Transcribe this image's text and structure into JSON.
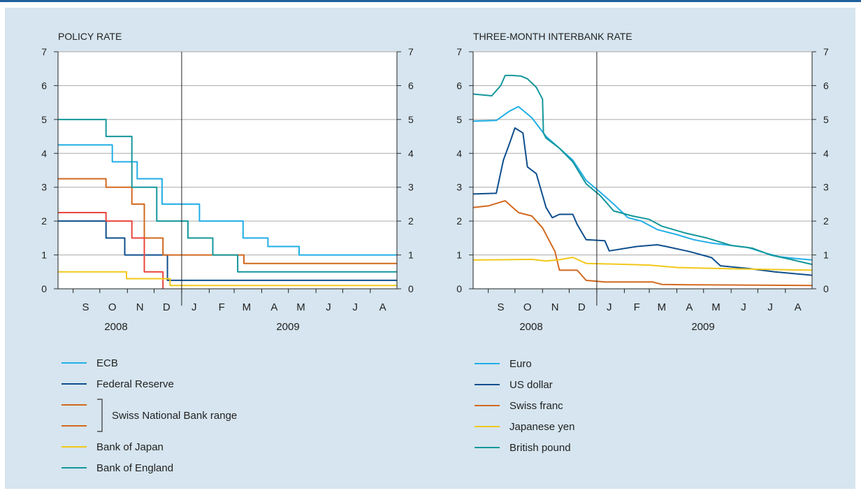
{
  "colors": {
    "ecb": "#22aee6",
    "fed": "#0f4f8e",
    "snb_upper": "#d2691f",
    "snb_lower": "#e8463c",
    "boj": "#f2c81a",
    "boe": "#14979b",
    "grid": "#aaaaaa",
    "background": "#d6e5ef"
  },
  "chart_data": [
    {
      "type": "line",
      "title": "POLICY RATE",
      "ylim": [
        0,
        7
      ],
      "y_ticks": [
        "0",
        "1",
        "2",
        "3",
        "4",
        "5",
        "6",
        "7"
      ],
      "x_tick_labels": [
        "S",
        "O",
        "N",
        "D",
        "J",
        "F",
        "M",
        "A",
        "M",
        "J",
        "J",
        "A"
      ],
      "year_labels": [
        "2008",
        "2009"
      ],
      "x_range": [
        "2008-08-15",
        "2009-08-31"
      ],
      "series": [
        {
          "name": "ECB",
          "color_key": "ecb",
          "step": true,
          "x": [
            "2008-08-15",
            "2008-10-15",
            "2008-11-12",
            "2008-12-10",
            "2009-01-21",
            "2009-03-11",
            "2009-04-08",
            "2009-05-13",
            "2009-08-31"
          ],
          "y": [
            4.25,
            3.75,
            3.25,
            2.5,
            2.0,
            1.5,
            1.25,
            1.0,
            1.0
          ]
        },
        {
          "name": "Federal Reserve",
          "color_key": "fed",
          "step": true,
          "x": [
            "2008-08-15",
            "2008-10-08",
            "2008-10-29",
            "2008-12-16",
            "2009-08-31"
          ],
          "y": [
            2.0,
            1.5,
            1.0,
            0.25,
            0.25
          ]
        },
        {
          "name": "Swiss National Bank range (upper)",
          "color_key": "snb_upper",
          "step": true,
          "x": [
            "2008-08-15",
            "2008-10-08",
            "2008-11-06",
            "2008-11-20",
            "2008-12-11",
            "2009-03-12",
            "2009-08-31"
          ],
          "y": [
            3.25,
            3.0,
            2.5,
            1.5,
            1.0,
            0.75,
            0.75
          ]
        },
        {
          "name": "Swiss National Bank range (lower)",
          "color_key": "snb_lower",
          "step": true,
          "x": [
            "2008-08-15",
            "2008-10-08",
            "2008-11-06",
            "2008-11-20",
            "2008-12-11"
          ],
          "y": [
            2.25,
            2.0,
            1.5,
            0.5,
            0.0
          ]
        },
        {
          "name": "Bank of Japan",
          "color_key": "boj",
          "step": true,
          "x": [
            "2008-08-15",
            "2008-10-31",
            "2008-12-19",
            "2009-08-31"
          ],
          "y": [
            0.5,
            0.3,
            0.1,
            0.1
          ]
        },
        {
          "name": "Bank of England",
          "color_key": "boe",
          "step": true,
          "x": [
            "2008-08-15",
            "2008-10-08",
            "2008-11-06",
            "2008-12-04",
            "2009-01-08",
            "2009-02-05",
            "2009-03-05",
            "2009-08-31"
          ],
          "y": [
            5.0,
            4.5,
            3.0,
            2.0,
            1.5,
            1.0,
            0.5,
            0.5
          ]
        }
      ]
    },
    {
      "type": "line",
      "title": "THREE-MONTH INTERBANK RATE",
      "ylim": [
        0,
        7
      ],
      "y_ticks": [
        "0",
        "1",
        "2",
        "3",
        "4",
        "5",
        "6",
        "7"
      ],
      "x_tick_labels": [
        "S",
        "O",
        "N",
        "D",
        "J",
        "F",
        "M",
        "A",
        "M",
        "J",
        "J",
        "A"
      ],
      "year_labels": [
        "2008",
        "2009"
      ],
      "x_range": [
        "2008-08-15",
        "2009-08-31"
      ],
      "series": [
        {
          "name": "Euro",
          "color_key": "ecb",
          "x": [
            "2008-08-15",
            "2008-09-10",
            "2008-09-25",
            "2008-10-05",
            "2008-10-20",
            "2008-11-05",
            "2008-11-20",
            "2008-12-05",
            "2008-12-20",
            "2009-01-05",
            "2009-01-20",
            "2009-02-05",
            "2009-02-20",
            "2009-03-10",
            "2009-04-01",
            "2009-04-20",
            "2009-05-10",
            "2009-06-01",
            "2009-06-20",
            "2009-07-10",
            "2009-07-25",
            "2009-08-10",
            "2009-08-31"
          ],
          "y": [
            4.95,
            4.97,
            5.25,
            5.38,
            5.05,
            4.5,
            4.15,
            3.8,
            3.2,
            2.85,
            2.5,
            2.1,
            2.0,
            1.75,
            1.6,
            1.45,
            1.35,
            1.28,
            1.22,
            1.05,
            0.95,
            0.9,
            0.85
          ]
        },
        {
          "name": "US dollar",
          "color_key": "fed",
          "x": [
            "2008-08-15",
            "2008-09-10",
            "2008-09-18",
            "2008-09-25",
            "2008-10-01",
            "2008-10-10",
            "2008-10-15",
            "2008-10-25",
            "2008-11-05",
            "2008-11-12",
            "2008-11-20",
            "2008-12-05",
            "2008-12-10",
            "2008-12-20",
            "2009-01-10",
            "2009-01-15",
            "2009-02-15",
            "2009-03-10",
            "2009-03-20",
            "2009-04-15",
            "2009-05-10",
            "2009-05-20",
            "2009-06-20",
            "2009-07-20",
            "2009-08-31"
          ],
          "y": [
            2.8,
            2.82,
            3.8,
            4.3,
            4.75,
            4.6,
            3.6,
            3.4,
            2.4,
            2.1,
            2.2,
            2.2,
            1.9,
            1.45,
            1.42,
            1.12,
            1.25,
            1.3,
            1.25,
            1.1,
            0.92,
            0.68,
            0.6,
            0.5,
            0.4
          ]
        },
        {
          "name": "Swiss franc",
          "color_key": "snb_upper",
          "x": [
            "2008-08-15",
            "2008-09-01",
            "2008-09-20",
            "2008-10-05",
            "2008-10-20",
            "2008-11-01",
            "2008-11-15",
            "2008-11-20",
            "2008-12-10",
            "2008-12-20",
            "2009-01-10",
            "2009-02-15",
            "2009-03-05",
            "2009-03-15",
            "2009-04-15",
            "2009-08-31"
          ],
          "y": [
            2.4,
            2.45,
            2.6,
            2.25,
            2.15,
            1.8,
            1.1,
            0.55,
            0.55,
            0.25,
            0.2,
            0.2,
            0.2,
            0.13,
            0.12,
            0.1
          ]
        },
        {
          "name": "Japanese yen",
          "color_key": "boj",
          "x": [
            "2008-08-15",
            "2008-09-20",
            "2008-10-20",
            "2008-11-05",
            "2008-11-20",
            "2008-12-05",
            "2008-12-20",
            "2009-01-20",
            "2009-03-01",
            "2009-04-01",
            "2009-05-15",
            "2009-08-31"
          ],
          "y": [
            0.85,
            0.86,
            0.87,
            0.82,
            0.86,
            0.93,
            0.75,
            0.73,
            0.7,
            0.63,
            0.6,
            0.55
          ]
        },
        {
          "name": "British pound",
          "color_key": "boe",
          "x": [
            "2008-08-15",
            "2008-09-05",
            "2008-09-15",
            "2008-09-20",
            "2008-09-28",
            "2008-10-08",
            "2008-10-15",
            "2008-10-25",
            "2008-11-01",
            "2008-11-02",
            "2008-11-05",
            "2008-11-20",
            "2008-12-05",
            "2008-12-20",
            "2009-01-05",
            "2009-01-20",
            "2009-02-10",
            "2009-03-01",
            "2009-03-15",
            "2009-04-10",
            "2009-05-05",
            "2009-06-01",
            "2009-06-25",
            "2009-07-15",
            "2009-08-05",
            "2009-08-31"
          ],
          "y": [
            5.75,
            5.7,
            6.0,
            6.3,
            6.3,
            6.28,
            6.2,
            5.95,
            5.6,
            4.6,
            4.45,
            4.15,
            3.75,
            3.1,
            2.75,
            2.3,
            2.15,
            2.05,
            1.85,
            1.65,
            1.5,
            1.28,
            1.2,
            1.0,
            0.88,
            0.72
          ]
        }
      ]
    }
  ],
  "legend_left": {
    "ecb": "ECB",
    "fed": "Federal Reserve",
    "snb": "Swiss National Bank range",
    "boj": "Bank of Japan",
    "boe": "Bank of England"
  },
  "legend_right": {
    "euro": "Euro",
    "usd": "US dollar",
    "chf": "Swiss franc",
    "jpy": "Japanese yen",
    "gbp": "British pound"
  }
}
